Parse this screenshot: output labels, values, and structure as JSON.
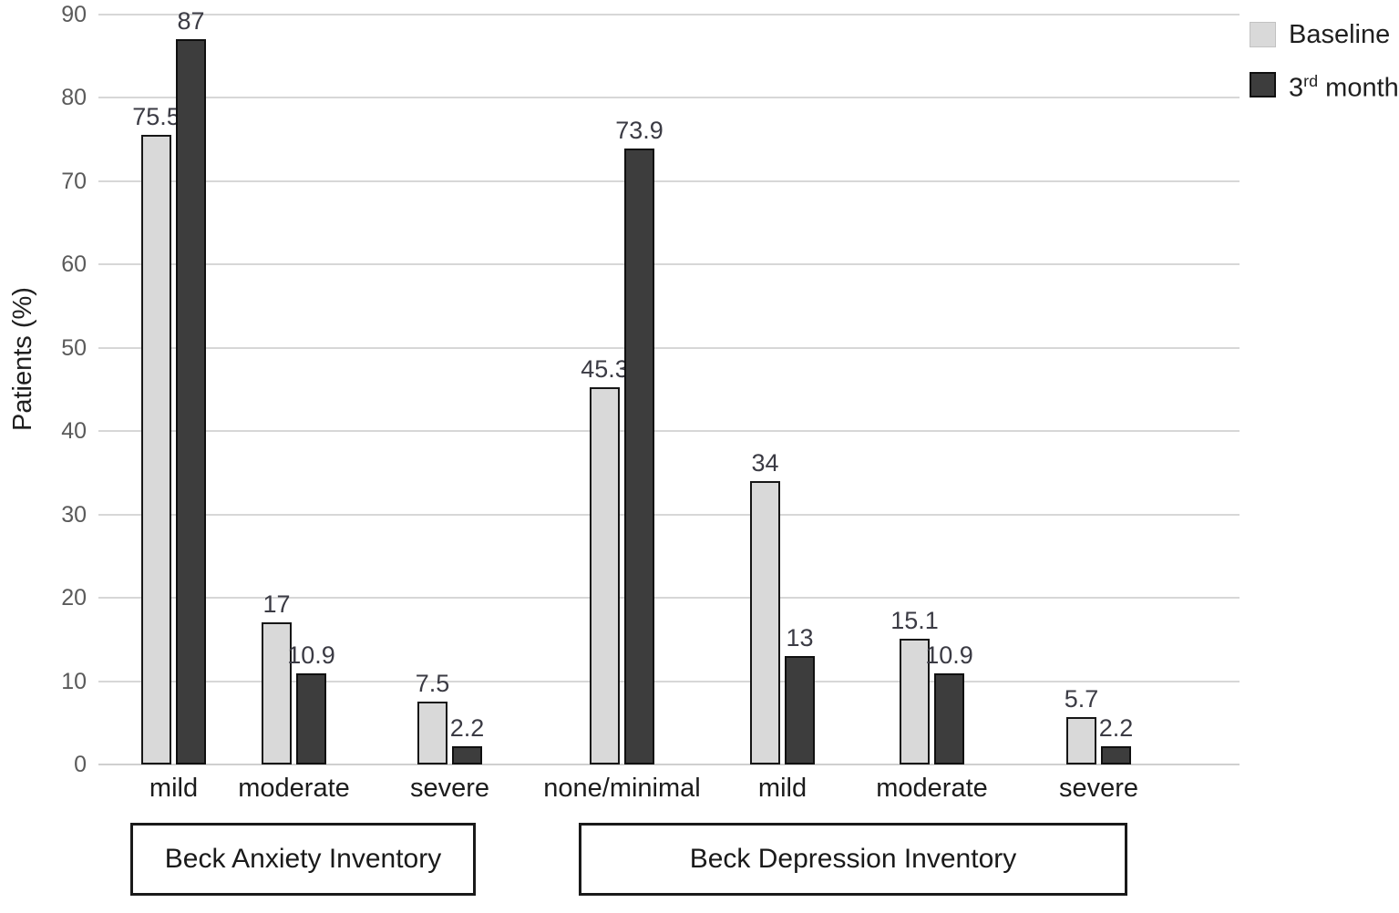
{
  "chart_data": {
    "type": "bar",
    "title": "",
    "xlabel": "",
    "ylabel": "Patients (%)",
    "ylim": [
      0,
      90
    ],
    "yticks": [
      0,
      10,
      20,
      30,
      40,
      50,
      60,
      70,
      80,
      90
    ],
    "grid": true,
    "legend_position": "top-right",
    "categories": [
      "mild",
      "moderate",
      "severe",
      "none/minimal",
      "mild",
      "moderate",
      "severe"
    ],
    "series": [
      {
        "name": "Baseline",
        "color": "#d9d9d9",
        "values": [
          75.5,
          17,
          7.5,
          45.3,
          34,
          15.1,
          5.7
        ]
      },
      {
        "name": "3rd month",
        "color": "#3d3d3d",
        "values": [
          87,
          10.9,
          2.2,
          73.9,
          13,
          10.9,
          2.2
        ]
      }
    ],
    "groups": [
      {
        "label": "Beck Anxiety Inventory",
        "categories": [
          "mild",
          "moderate",
          "severe"
        ]
      },
      {
        "label": "Beck Depression Inventory",
        "categories": [
          "none/minimal",
          "mild",
          "moderate",
          "severe"
        ]
      }
    ]
  },
  "legend": {
    "items": [
      {
        "label": "Baseline",
        "swatch": "#d9d9d9"
      },
      {
        "prefix": "3",
        "sup": "rd",
        "suffix": " month",
        "swatch": "#3d3d3d"
      }
    ]
  }
}
